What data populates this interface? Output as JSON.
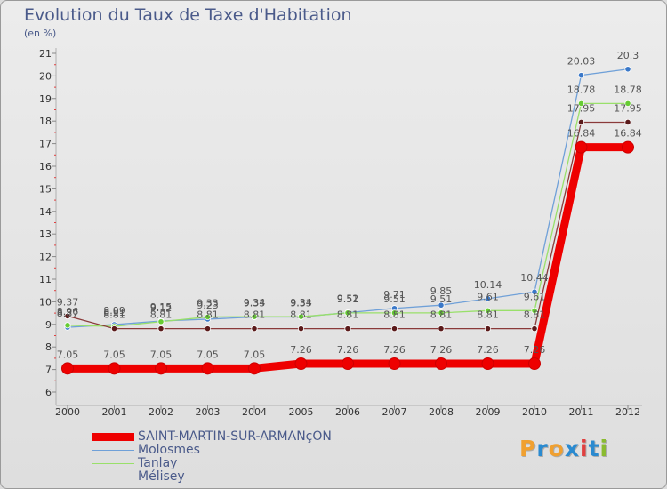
{
  "title": "Evolution du Taux de Taxe d'Habitation",
  "subtitle": "(en %)",
  "logo": {
    "letters": [
      "P",
      "r",
      "o",
      "x",
      "i",
      "t",
      "i"
    ],
    "colors": [
      "#f0a030",
      "#2a8ad0",
      "#f0a030",
      "#2a8ad0",
      "#e04040",
      "#2a8ad0",
      "#8abb30"
    ]
  },
  "chart_data": {
    "type": "line",
    "x": [
      "2000",
      "2001",
      "2002",
      "2003",
      "2004",
      "2005",
      "2006",
      "2007",
      "2008",
      "2009",
      "2010",
      "2011",
      "2012"
    ],
    "ylim": [
      6,
      21
    ],
    "yticks": [
      "6",
      "7",
      "8",
      "9",
      "10",
      "11",
      "12",
      "13",
      "14",
      "15",
      "16",
      "17",
      "18",
      "19",
      "20",
      "21"
    ],
    "grid": false,
    "legend_position": "bottom-left",
    "series": [
      {
        "name": "SAINT-MARTIN-SUR-ARMANçON",
        "color": "#ee0000",
        "thick": true,
        "values": [
          7.05,
          7.05,
          7.05,
          7.05,
          7.05,
          7.26,
          7.26,
          7.26,
          7.26,
          7.26,
          7.26,
          16.84,
          16.84
        ],
        "labels": [
          "7.05",
          "7.05",
          "7.05",
          "7.05",
          "7.05",
          "7.26",
          "7.26",
          "7.26",
          "7.26",
          "7.26",
          "7.26",
          "16.84",
          "16.84"
        ]
      },
      {
        "name": "Molosmes",
        "color": "#6fa0d8",
        "dot": "#3a78c8",
        "thick": false,
        "values": [
          8.87,
          8.99,
          9.15,
          9.23,
          9.33,
          9.33,
          9.52,
          9.71,
          9.85,
          10.14,
          10.44,
          20.03,
          20.3
        ],
        "labels": [
          "8.87",
          "8.99",
          "9.15",
          "9.23",
          "9.33",
          "9.33",
          "9.52",
          "9.71",
          "9.85",
          "10.14",
          "10.44",
          "20.03",
          "20.3"
        ]
      },
      {
        "name": "Tanlay",
        "color": "#99e06a",
        "dot": "#66cc33",
        "thick": false,
        "values": [
          8.96,
          8.91,
          9.12,
          9.33,
          9.34,
          9.34,
          9.51,
          9.51,
          9.51,
          9.61,
          9.61,
          18.78,
          18.78
        ],
        "labels": [
          "8.96",
          "8.91",
          "9.12",
          "9.33",
          "9.34",
          "9.34",
          "9.51",
          "9.51",
          "9.51",
          "9.61",
          "9.61",
          "18.78",
          "18.78"
        ]
      },
      {
        "name": "Mélisey",
        "color": "#8a3a3a",
        "dot": "#5a1a1a",
        "thick": false,
        "values": [
          9.37,
          8.81,
          8.81,
          8.81,
          8.81,
          8.81,
          8.81,
          8.81,
          8.81,
          8.81,
          8.81,
          17.95,
          17.95
        ],
        "labels": [
          "9.37",
          "8.81",
          "8.81",
          "8.81",
          "8.81",
          "8.81",
          "8.81",
          "8.81",
          "8.81",
          "8.81",
          "8.81",
          "17.95",
          "17.95"
        ]
      }
    ]
  }
}
